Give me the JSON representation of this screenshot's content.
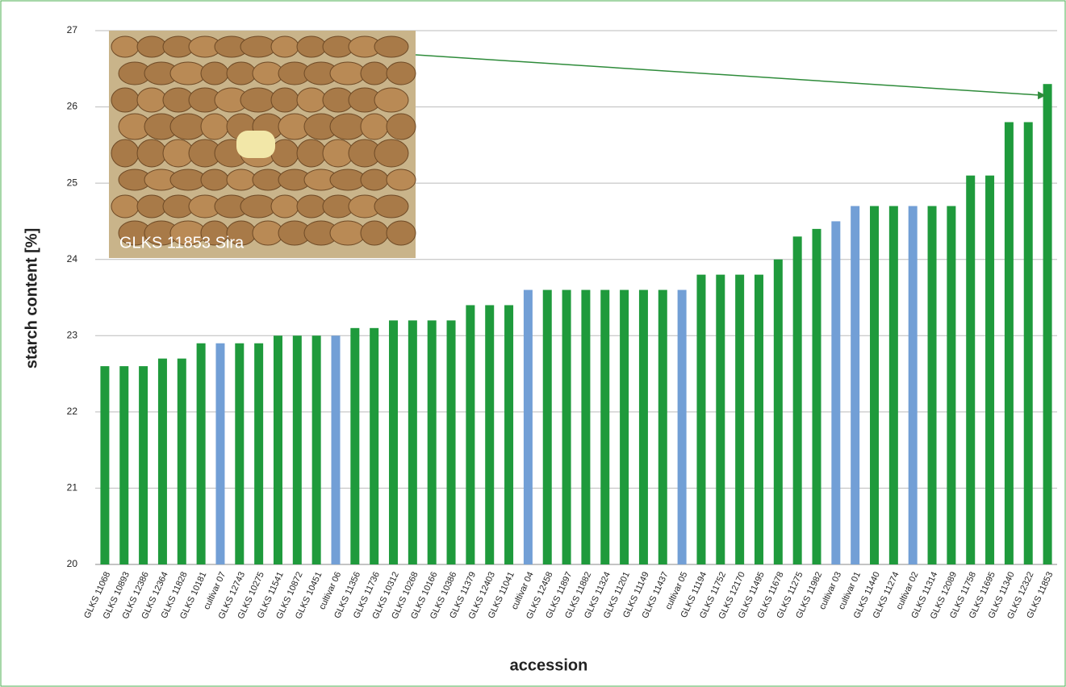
{
  "chart_data": {
    "type": "bar",
    "x_label": "accession",
    "y_label": "starch content [%]",
    "annotation": "GLKS 11853   Sira",
    "categories": [
      "GLKS 11068",
      "GLKS 10893",
      "GLKS 12386",
      "GLKS 12364",
      "GLKS 11828",
      "GLKS 10181",
      "cultivar 07",
      "GLKS 12743",
      "GLKS 10275",
      "GLKS 11541",
      "GLKS 10872",
      "GLKS 10451",
      "cultivar 06",
      "GLKS 11356",
      "GLKS 11736",
      "GLKS 10312",
      "GLKS 10268",
      "GLKS 10166",
      "GLKS 10386",
      "GLKS 11379",
      "GLKS 12403",
      "GLKS 11041",
      "cultivar 04",
      "GLKS 12458",
      "GLKS 11897",
      "GLKS 11882",
      "GLKS 11324",
      "GLKS 11201",
      "GLKS 11149",
      "GLKS 11437",
      "cultivar 05",
      "GLKS 11194",
      "GLKS 11752",
      "GLKS 12170",
      "GLKS 11495",
      "GLKS 11678",
      "GLKS 11275",
      "GLKS 11982",
      "cultivar 03",
      "cultivar 01",
      "GLKS 11440",
      "GLKS 11274",
      "cultivar 02",
      "GLKS 11314",
      "GLKS 12089",
      "GLKS 11758",
      "GLKS 11695",
      "GLKS 11340",
      "GLKS 12322",
      "GLKS 11853"
    ],
    "values": [
      22.6,
      22.6,
      22.6,
      22.7,
      22.7,
      22.9,
      22.9,
      22.9,
      22.9,
      23.0,
      23.0,
      23.0,
      23.0,
      23.1,
      23.1,
      23.2,
      23.2,
      23.2,
      23.2,
      23.4,
      23.4,
      23.4,
      23.6,
      23.6,
      23.6,
      23.6,
      23.6,
      23.6,
      23.6,
      23.6,
      23.6,
      23.8,
      23.8,
      23.8,
      23.8,
      24.0,
      24.3,
      24.4,
      24.5,
      24.7,
      24.7,
      24.7,
      24.7,
      24.7,
      24.7,
      25.1,
      25.1,
      25.8,
      25.8,
      26.3
    ],
    "colors": [
      "#1f9a3c",
      "#1f9a3c",
      "#1f9a3c",
      "#1f9a3c",
      "#1f9a3c",
      "#1f9a3c",
      "#729fd6",
      "#1f9a3c",
      "#1f9a3c",
      "#1f9a3c",
      "#1f9a3c",
      "#1f9a3c",
      "#729fd6",
      "#1f9a3c",
      "#1f9a3c",
      "#1f9a3c",
      "#1f9a3c",
      "#1f9a3c",
      "#1f9a3c",
      "#1f9a3c",
      "#1f9a3c",
      "#1f9a3c",
      "#729fd6",
      "#1f9a3c",
      "#1f9a3c",
      "#1f9a3c",
      "#1f9a3c",
      "#1f9a3c",
      "#1f9a3c",
      "#1f9a3c",
      "#729fd6",
      "#1f9a3c",
      "#1f9a3c",
      "#1f9a3c",
      "#1f9a3c",
      "#1f9a3c",
      "#1f9a3c",
      "#1f9a3c",
      "#729fd6",
      "#729fd6",
      "#1f9a3c",
      "#1f9a3c",
      "#729fd6",
      "#1f9a3c",
      "#1f9a3c",
      "#1f9a3c",
      "#1f9a3c",
      "#1f9a3c",
      "#1f9a3c",
      "#1f9a3c"
    ],
    "ylim": [
      20,
      27
    ],
    "yticks": [
      20,
      21,
      22,
      23,
      24,
      25,
      26,
      27
    ],
    "grid": true
  }
}
